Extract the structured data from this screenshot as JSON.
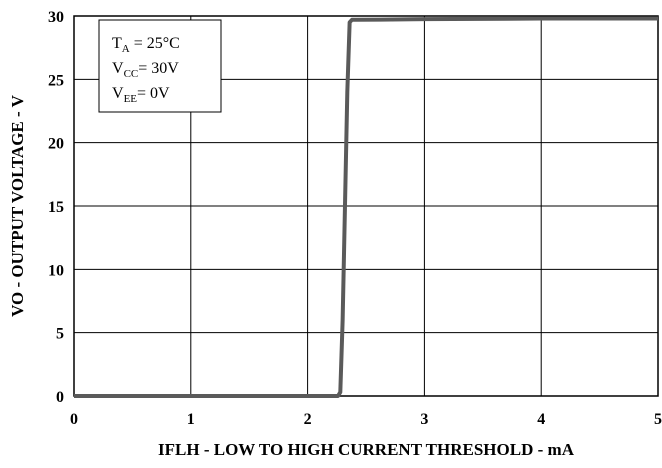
{
  "chart_data": {
    "type": "line",
    "title": "",
    "xlabel": "IFLH - LOW TO HIGH CURRENT THRESHOLD - mA",
    "ylabel": "VO - OUTPUT VOLTAGE - V",
    "xlim": [
      0,
      5
    ],
    "ylim": [
      0,
      30
    ],
    "x_ticks": [
      "0",
      "1",
      "2",
      "3",
      "4",
      "5"
    ],
    "y_ticks": [
      "0",
      "5",
      "10",
      "15",
      "20",
      "25",
      "30"
    ],
    "x_tick_values": [
      0,
      1,
      2,
      3,
      4,
      5
    ],
    "y_tick_values": [
      0,
      5,
      10,
      15,
      20,
      25,
      30
    ],
    "grid": true,
    "series": [
      {
        "color": "#5a5a5a",
        "x": [
          0,
          2.26,
          2.28,
          2.3,
          2.32,
          2.34,
          2.36,
          2.38,
          2.42,
          3,
          4,
          5
        ],
        "y": [
          0,
          0,
          0.3,
          6,
          15,
          24,
          29.5,
          29.7,
          29.7,
          29.75,
          29.8,
          29.8
        ]
      }
    ],
    "annotation": {
      "lines": [
        {
          "main": "T",
          "sub": "A",
          "rest": " = 25°C"
        },
        {
          "main": "V",
          "sub": "CC",
          "rest": "= 30V"
        },
        {
          "main": "V",
          "sub": "EE",
          "rest": "= 0V"
        }
      ]
    }
  }
}
